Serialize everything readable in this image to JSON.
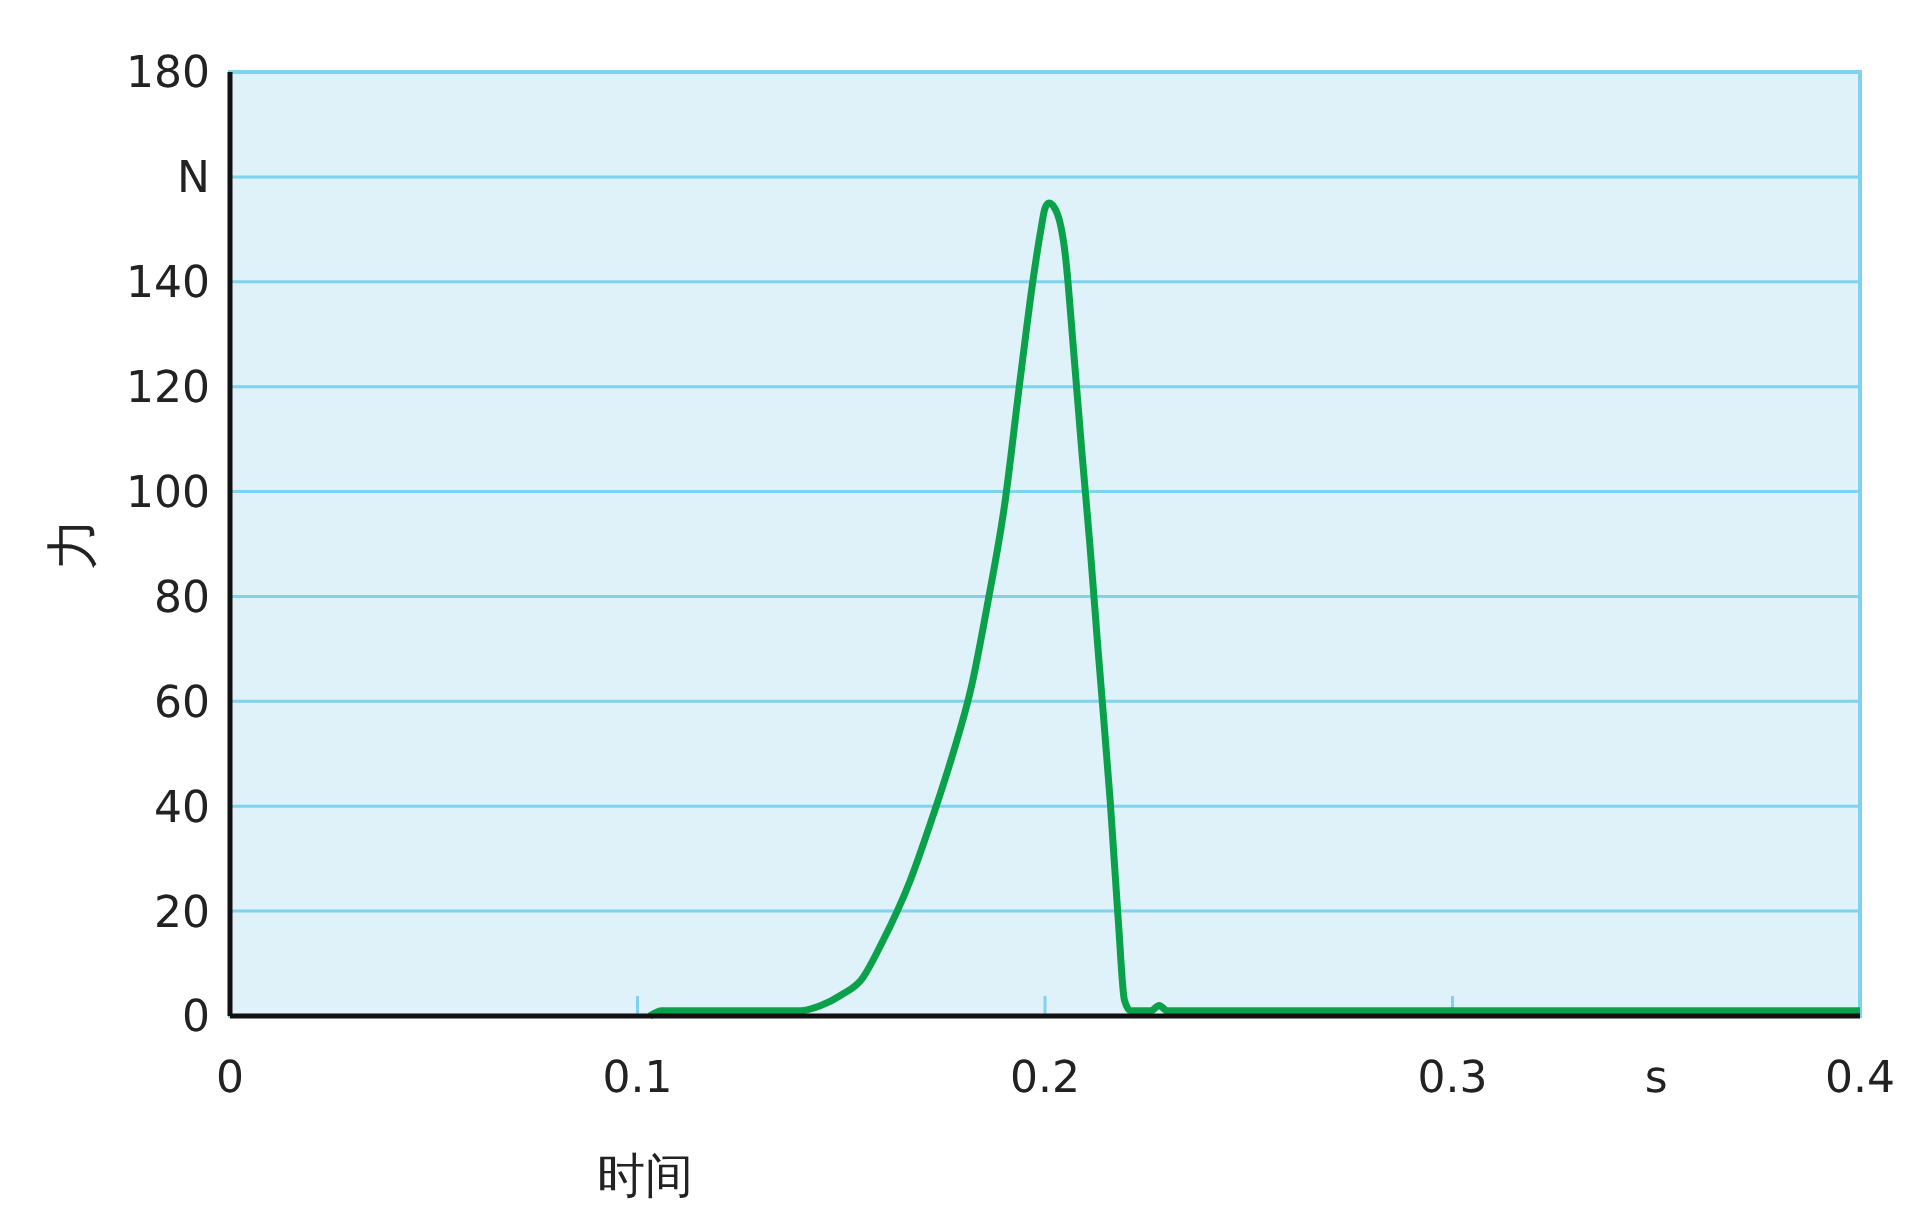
{
  "chart_data": {
    "type": "line",
    "xlabel": "时间",
    "ylabel": "力",
    "xlim": [
      0,
      0.4
    ],
    "ylim": [
      0,
      180
    ],
    "xticks": [
      0,
      0.1,
      0.2,
      0.3,
      {
        "value": 0.35,
        "label": "s"
      },
      0.4
    ],
    "yticks": [
      0,
      20,
      40,
      60,
      80,
      100,
      120,
      140,
      {
        "value": 160,
        "label": "N"
      },
      180
    ],
    "grid": "y",
    "marker": "none",
    "line_style": "solid",
    "series": [
      {
        "color": "#0ba14b",
        "x": [
          0.103,
          0.106,
          0.11,
          0.12,
          0.13,
          0.14,
          0.145,
          0.15,
          0.155,
          0.16,
          0.167,
          0.172,
          0.177,
          0.182,
          0.186,
          0.19,
          0.194,
          0.197,
          0.199,
          0.2,
          0.201,
          0.203,
          0.205,
          0.207,
          0.209,
          0.211,
          0.213,
          0.216,
          0.218,
          0.2195,
          0.221,
          0.223,
          0.226,
          0.228,
          0.23,
          0.25,
          0.3,
          0.35,
          0.4
        ],
        "values": [
          0,
          1,
          1,
          1,
          1,
          1,
          2,
          4,
          7,
          14,
          26,
          37,
          49,
          63,
          79,
          97,
          122,
          140,
          150,
          154,
          155,
          153,
          145,
          127,
          108,
          90,
          70,
          41,
          18,
          3,
          1,
          1,
          1,
          2,
          1,
          1,
          1,
          1,
          1
        ]
      }
    ]
  }
}
